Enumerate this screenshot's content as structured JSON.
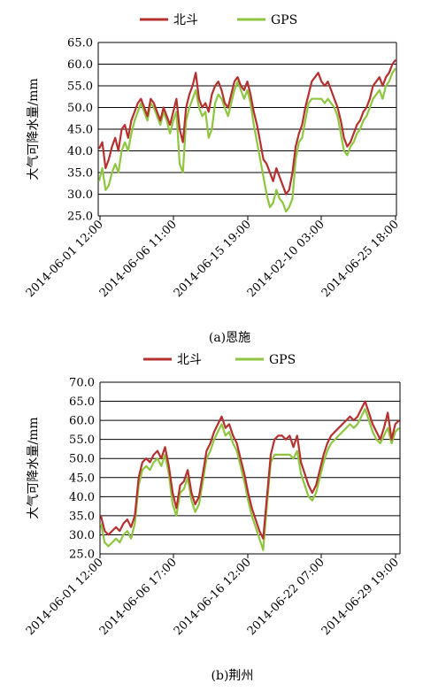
{
  "chart_data": [
    {
      "type": "line",
      "caption": "(a)恩施",
      "ylabel": "大气可降水量/mm",
      "ylim": [
        25.0,
        65.0
      ],
      "yticks": [
        "25.0",
        "30.0",
        "35.0",
        "40.0",
        "45.0",
        "50.0",
        "55.0",
        "60.0",
        "65.0"
      ],
      "xtick_labels": [
        "2014-06-01 12:00",
        "2014-06-06 11:00",
        "2014-06-15 19:00",
        "2014-02-10 03:00",
        "2014-06-25 18:00"
      ],
      "grid": true,
      "legend_position": "top",
      "series": [
        {
          "name": "北斗",
          "color": "#b5302f",
          "values": [
            40.5,
            42,
            36,
            38,
            41,
            43,
            40,
            45,
            46,
            43,
            47,
            49,
            51,
            52,
            50,
            48,
            52,
            51,
            49,
            47,
            50,
            48,
            46,
            49,
            52,
            45,
            42,
            50,
            53,
            55,
            58,
            52,
            50,
            51,
            49,
            53,
            55,
            56,
            54,
            51,
            50,
            53,
            56,
            57,
            55,
            54,
            56,
            53,
            49,
            46,
            42,
            38,
            37,
            35,
            33,
            36,
            34,
            32,
            30,
            31,
            35,
            41,
            44,
            46,
            50,
            53,
            56,
            57,
            58,
            56,
            55,
            56,
            54,
            52,
            50,
            47,
            43,
            41,
            42,
            44,
            46,
            47,
            49,
            50,
            52,
            55,
            56,
            57,
            55,
            57,
            58,
            60,
            61
          ]
        },
        {
          "name": "GPS",
          "color": "#8ec63f",
          "values": [
            33,
            36,
            31,
            32,
            35,
            37,
            35,
            40,
            42,
            40,
            44,
            47,
            49,
            51,
            49,
            47,
            51,
            50,
            48,
            46,
            49,
            47,
            44,
            47,
            49,
            37,
            35,
            47,
            50,
            52,
            54,
            50,
            48,
            49,
            43,
            45,
            51,
            53,
            52,
            50,
            48,
            51,
            54,
            56,
            54,
            52,
            54,
            51,
            46,
            42,
            38,
            34,
            30,
            27,
            28,
            31,
            29,
            28,
            26,
            27,
            29,
            38,
            42,
            43,
            47,
            51,
            52,
            52,
            52,
            52,
            51,
            52,
            51,
            50,
            48,
            44,
            40,
            39,
            41,
            42,
            44,
            45,
            47,
            48,
            50,
            52,
            53,
            54,
            52,
            55,
            56,
            58,
            59
          ]
        }
      ]
    },
    {
      "type": "line",
      "caption": "(b)荆州",
      "ylabel": "大气可降水量/mm",
      "ylim": [
        25.0,
        70.0
      ],
      "yticks": [
        "25.0",
        "30.0",
        "35.0",
        "40.0",
        "45.0",
        "50.0",
        "55.0",
        "60.0",
        "65.0",
        "70.0"
      ],
      "xtick_labels": [
        "2014-06-01 12:00",
        "2014-06-06 17:00",
        "2014-06-16 12:00",
        "2014-06-22 07:00",
        "2014-06-29 19:00"
      ],
      "grid": true,
      "legend_position": "top",
      "series": [
        {
          "name": "北斗",
          "color": "#b5302f",
          "values": [
            35,
            31,
            30,
            31,
            32,
            31,
            33,
            34,
            32,
            35,
            45,
            49,
            50,
            49,
            51,
            52,
            50,
            53,
            48,
            41,
            37,
            43,
            44,
            47,
            41,
            38,
            40,
            46,
            52,
            54,
            57,
            59,
            61,
            58,
            59,
            56,
            54,
            50,
            46,
            41,
            37,
            34,
            31,
            29,
            40,
            51,
            55,
            56,
            56,
            55,
            56,
            53,
            56,
            49,
            46,
            43,
            41,
            43,
            47,
            51,
            54,
            56,
            57,
            58,
            59,
            60,
            61,
            60,
            61,
            63,
            65,
            62,
            59,
            57,
            55,
            58,
            62,
            55,
            59,
            60
          ]
        },
        {
          "name": "GPS",
          "color": "#8ec63f",
          "values": [
            33,
            28,
            27,
            28,
            29,
            28,
            30,
            31,
            29,
            33,
            43,
            47,
            48,
            47,
            49,
            50,
            48,
            51,
            46,
            38,
            35,
            41,
            42,
            45,
            39,
            36,
            38,
            44,
            50,
            52,
            55,
            57,
            59,
            56,
            57,
            54,
            52,
            48,
            44,
            39,
            35,
            32,
            29,
            26,
            38,
            49,
            51,
            51,
            51,
            51,
            51,
            50,
            52,
            46,
            43,
            40,
            39,
            41,
            45,
            49,
            52,
            54,
            55,
            56,
            57,
            58,
            59,
            58,
            59,
            61,
            63,
            60,
            57,
            55,
            54,
            56,
            58,
            54,
            57,
            58
          ]
        }
      ]
    }
  ]
}
